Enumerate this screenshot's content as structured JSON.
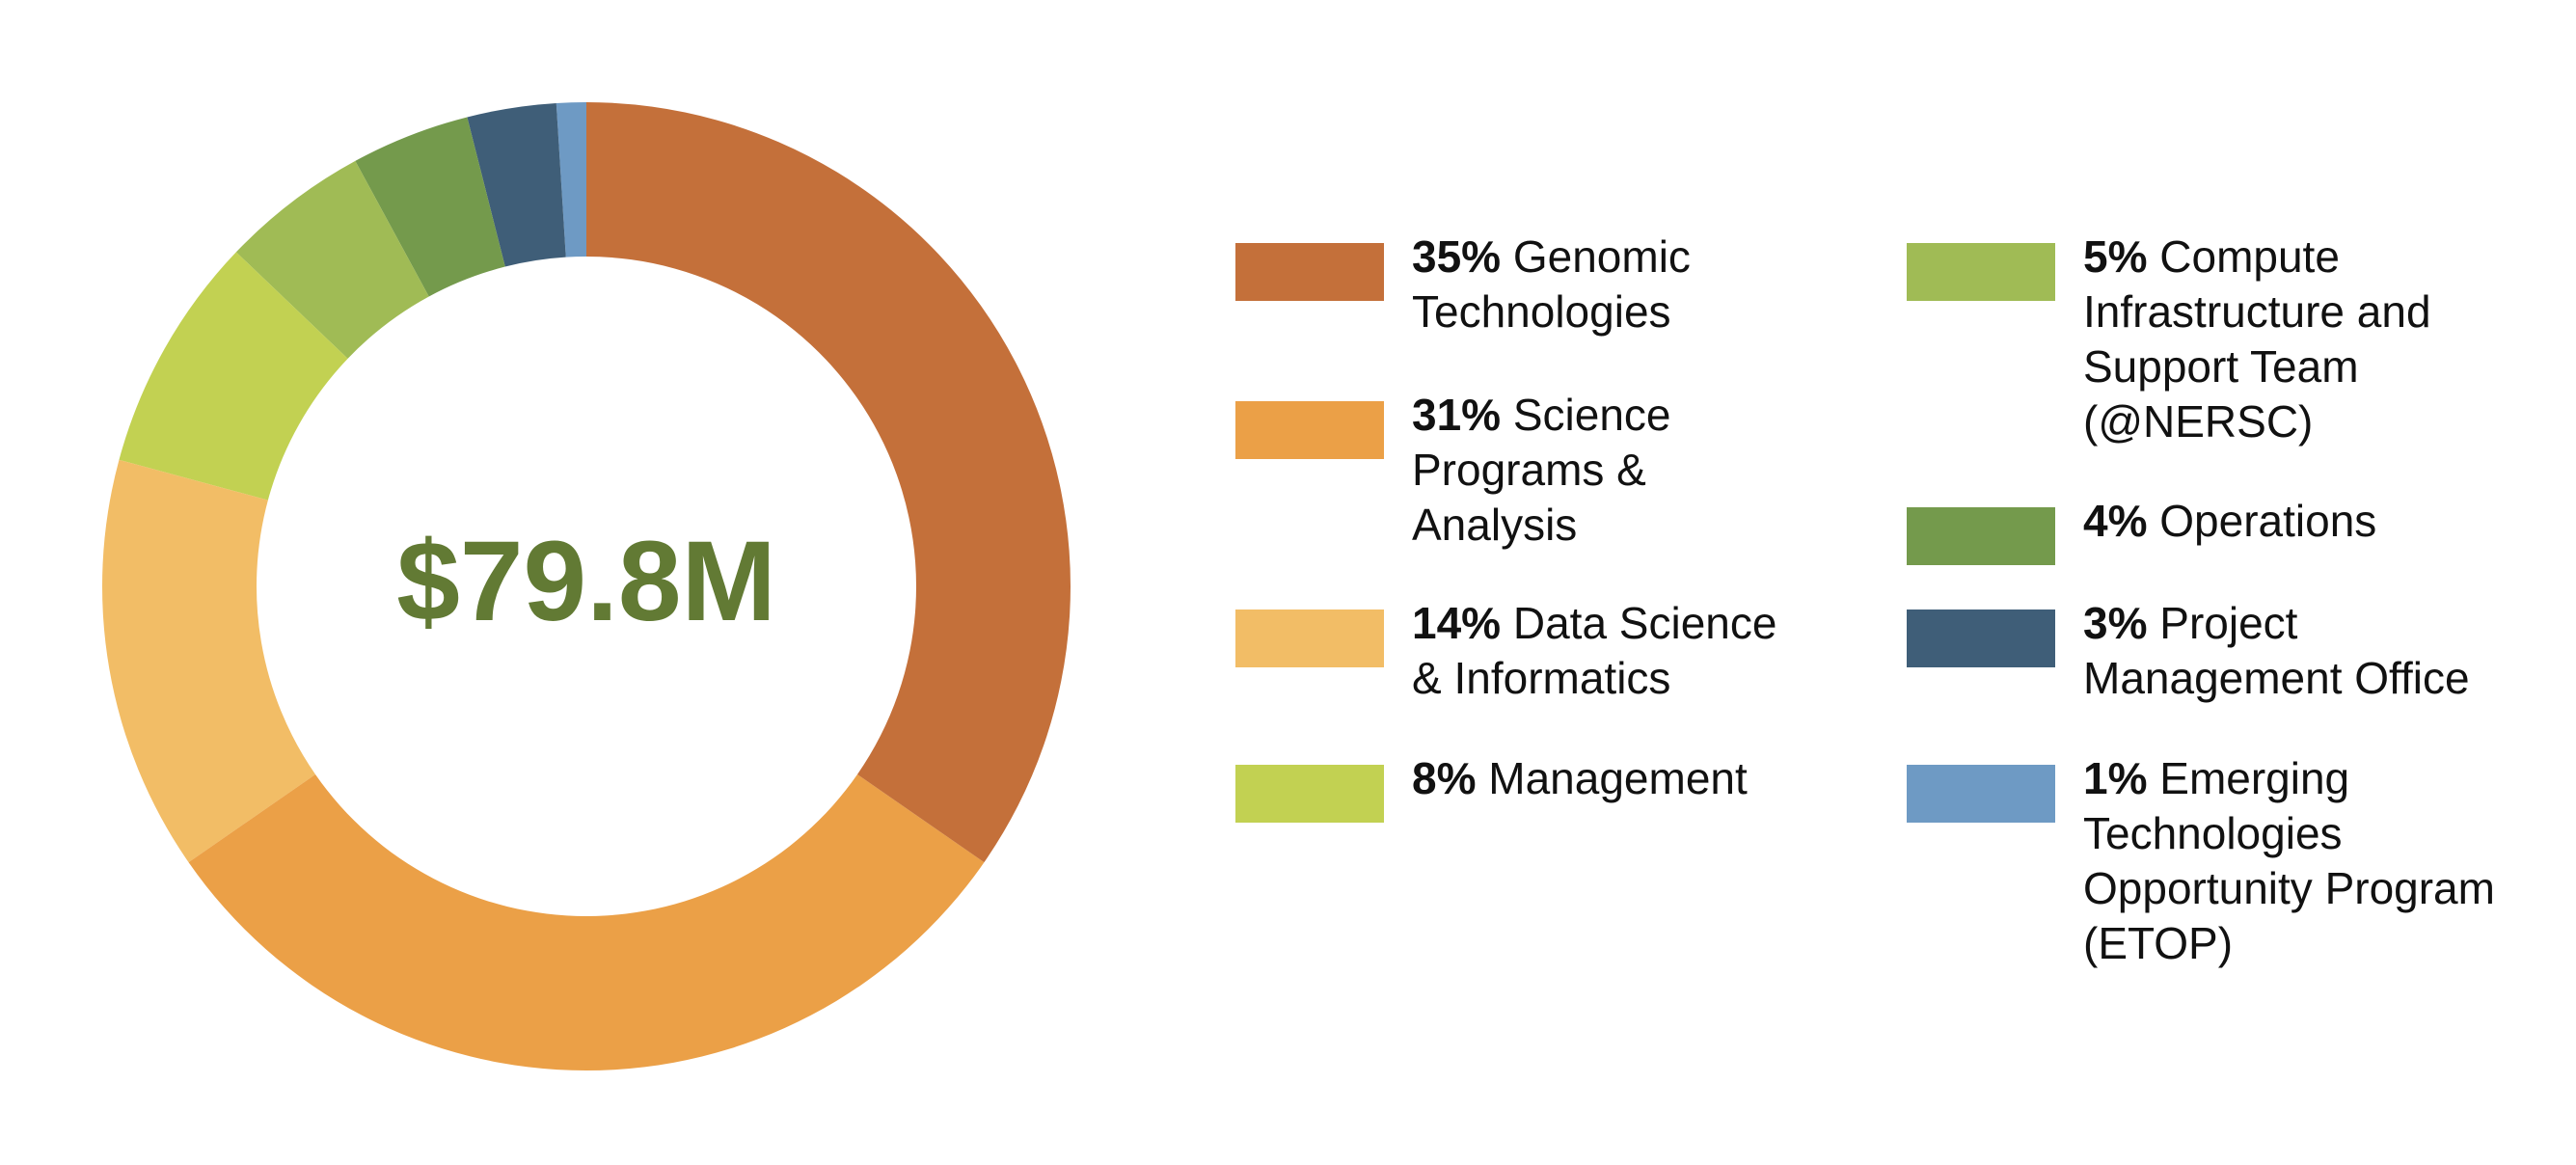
{
  "chart_data": {
    "type": "donut",
    "center_label": "$79.8M",
    "categories": [
      "Genomic Technologies",
      "Science Programs & Analysis",
      "Data Science & Informatics",
      "Management",
      "Compute Infrastructure and Support Team (@NERSC)",
      "Operations",
      "Project Management Office",
      "Emerging Technologies Opportunity Program (ETOP)"
    ],
    "values": [
      35,
      31,
      14,
      8,
      5,
      4,
      3,
      1
    ],
    "value_labels": [
      "35%",
      "31%",
      "14%",
      "8%",
      "5%",
      "4%",
      "3%",
      "1%"
    ],
    "colors": [
      "#c4703a",
      "#eba047",
      "#f2bd66",
      "#c2d152",
      "#a0bb55",
      "#749a4c",
      "#3f5e78",
      "#6e9ac4"
    ],
    "center_color": "#627a34"
  }
}
